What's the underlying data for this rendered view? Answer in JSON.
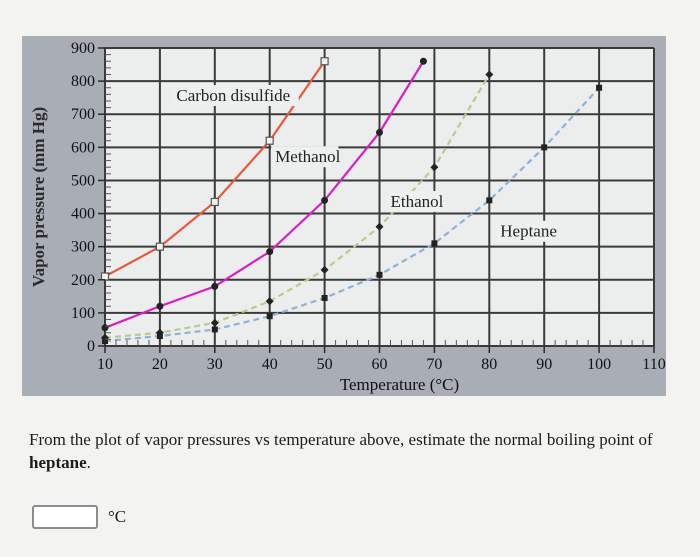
{
  "chart_data": {
    "type": "line",
    "xlabel": "Temperature (°C)",
    "ylabel": "Vapor pressure (mm Hg)",
    "xlim": [
      10,
      110
    ],
    "ylim": [
      0,
      900
    ],
    "x_ticks": [
      "10",
      "20",
      "30",
      "40",
      "50",
      "60",
      "70",
      "80",
      "90",
      "100",
      "110"
    ],
    "y_ticks": [
      "0",
      "100",
      "200",
      "300",
      "400",
      "500",
      "600",
      "700",
      "800",
      "900"
    ],
    "grid": true,
    "series": [
      {
        "name": "Carbon disulfide",
        "color": "#e8583a",
        "marker": "square",
        "x": [
          10,
          20,
          30,
          40,
          50
        ],
        "y": [
          210,
          300,
          435,
          620,
          860
        ]
      },
      {
        "name": "Methanol",
        "color": "#d81fc6",
        "marker": "circle",
        "x": [
          10,
          20,
          30,
          40,
          50,
          60,
          68
        ],
        "y": [
          55,
          120,
          180,
          285,
          440,
          645,
          860
        ]
      },
      {
        "name": "Ethanol",
        "color": "#b8cc8a",
        "marker": "diamond",
        "dashed": true,
        "x": [
          10,
          20,
          30,
          40,
          50,
          60,
          70,
          80
        ],
        "y": [
          25,
          40,
          70,
          135,
          230,
          360,
          540,
          820
        ]
      },
      {
        "name": "Heptane",
        "color": "#8fb0d8",
        "marker": "square",
        "dashed": true,
        "x": [
          10,
          20,
          30,
          40,
          50,
          60,
          70,
          80,
          90,
          100
        ],
        "y": [
          15,
          30,
          50,
          90,
          145,
          215,
          310,
          440,
          600,
          780
        ]
      }
    ],
    "labels": [
      {
        "text": "Carbon disulfide",
        "x": 23,
        "y": 740
      },
      {
        "text": "Methanol",
        "x": 41,
        "y": 555
      },
      {
        "text": "Ethanol",
        "x": 62,
        "y": 420
      },
      {
        "text": "Heptane",
        "x": 82,
        "y": 330
      }
    ]
  },
  "question": {
    "before": "From the plot of vapor pressures vs temperature above, estimate the normal boiling point of ",
    "bold": "heptane",
    "after": "."
  },
  "answer": {
    "value": "",
    "unit": "°C"
  }
}
